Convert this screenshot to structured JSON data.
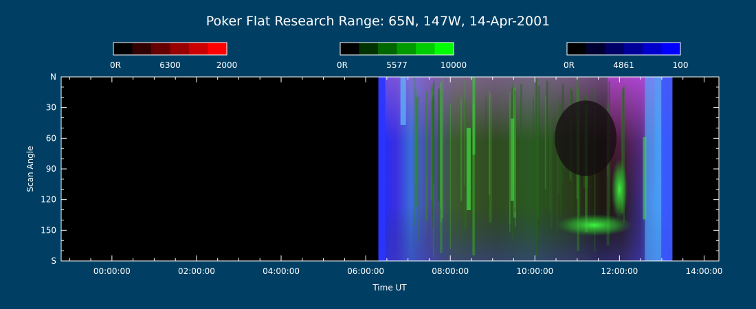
{
  "chart_data": {
    "type": "heatmap",
    "title": "Poker Flat Research Range: 65N, 147W, 14-Apr-2001",
    "xlabel": "Time UT",
    "ylabel": "Scan Angle",
    "x_ticks": [
      "00:00:00",
      "02:00:00",
      "04:00:00",
      "06:00:00",
      "08:00:00",
      "10:00:00",
      "12:00:00",
      "14:00:00"
    ],
    "x_tick_hours": [
      0,
      2,
      4,
      6,
      8,
      10,
      12,
      14
    ],
    "xlim_hours": [
      -1.2,
      14.35
    ],
    "y_ticks": [
      "N",
      "30",
      "60",
      "90",
      "120",
      "150",
      "S"
    ],
    "y_tick_values": [
      0,
      30,
      60,
      90,
      120,
      150,
      180
    ],
    "ylim": [
      0,
      180
    ],
    "data_coverage_hours": [
      6.3,
      13.25
    ],
    "colorbars": [
      {
        "name": "6300",
        "min_label": "0R",
        "max_label": "2000",
        "color": "#ff0000"
      },
      {
        "name": "5577",
        "min_label": "0R",
        "max_label": "10000",
        "color": "#00ff00"
      },
      {
        "name": "4861",
        "min_label": "0R",
        "max_label": "100",
        "color": "#0000ff"
      }
    ],
    "grid": false
  }
}
